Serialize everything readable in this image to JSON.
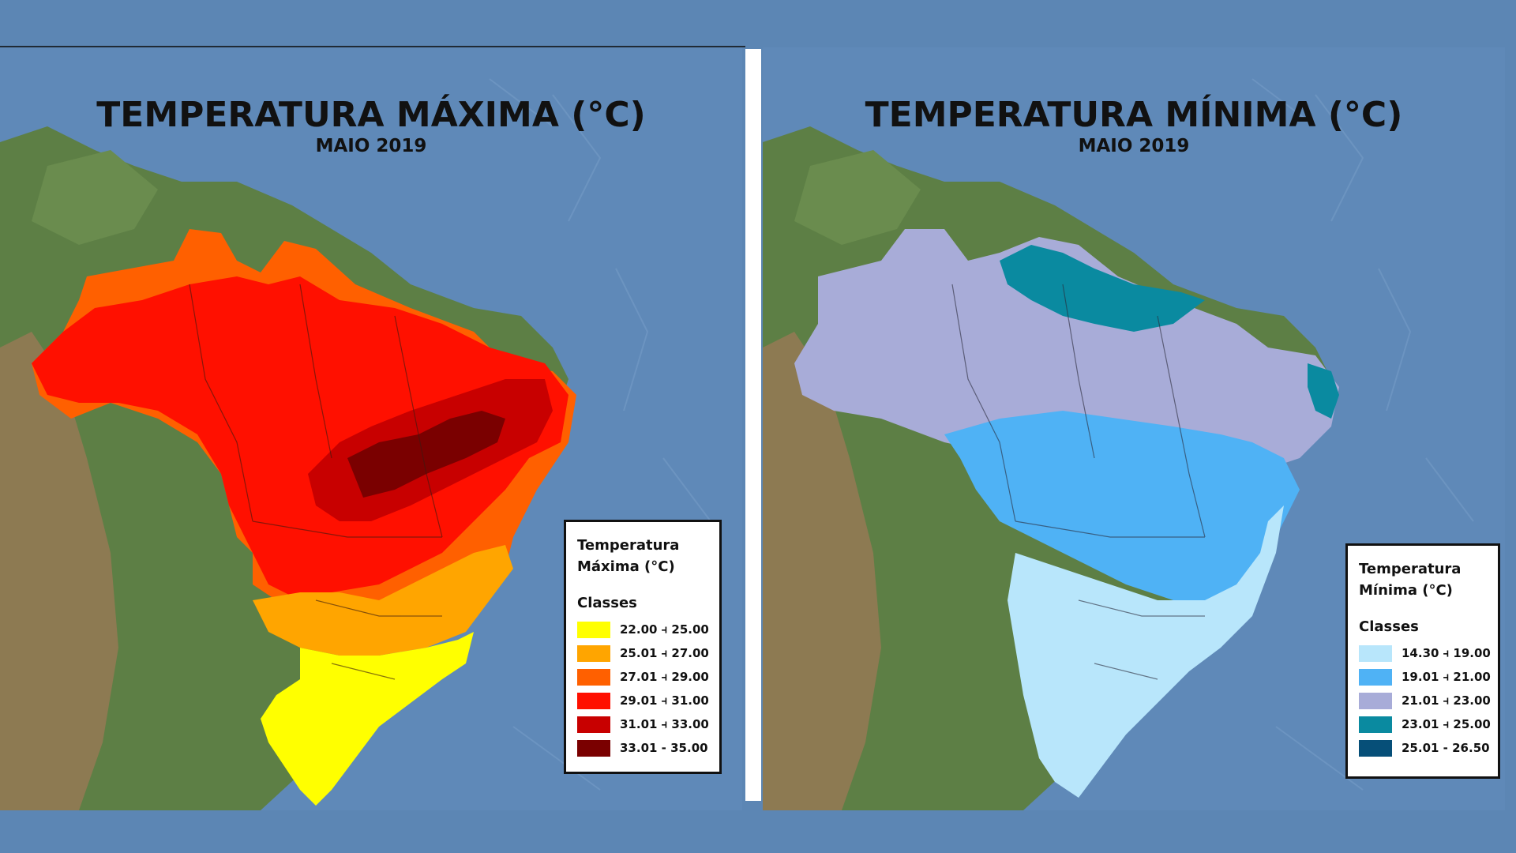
{
  "panels": {
    "max": {
      "title": "TEMPERATURA MÁXIMA (°C)",
      "subtitle": "MAIO 2019",
      "legend_title_line1": "Temperatura",
      "legend_title_line2": "Máxima (°C)",
      "classes_label": "Classes",
      "classes": [
        {
          "label": "22.00 ⫞ 25.00",
          "color": "#ffff00"
        },
        {
          "label": "25.01 ⫞ 27.00",
          "color": "#ffa500"
        },
        {
          "label": "27.01 ⫞ 29.00",
          "color": "#ff6000"
        },
        {
          "label": "29.01 ⫞ 31.00",
          "color": "#ff1000"
        },
        {
          "label": "31.01 ⫞ 33.00",
          "color": "#c80000"
        },
        {
          "label": "33.01 - 35.00",
          "color": "#7a0000"
        }
      ]
    },
    "min": {
      "title": "TEMPERATURA MÍNIMA (°C)",
      "subtitle": "MAIO 2019",
      "legend_title_line1": "Temperatura",
      "legend_title_line2": "Mínima (°C)",
      "classes_label": "Classes",
      "classes": [
        {
          "label": "14.30 ⫞ 19.00",
          "color": "#b8e6fb"
        },
        {
          "label": "19.01 ⫞ 21.00",
          "color": "#4fb2f5"
        },
        {
          "label": "21.01 ⫞ 23.00",
          "color": "#a8acd8"
        },
        {
          "label": "23.01 ⫞ 25.00",
          "color": "#0a8aa0"
        },
        {
          "label": "25.01 - 26.50",
          "color": "#064f78"
        }
      ]
    }
  }
}
